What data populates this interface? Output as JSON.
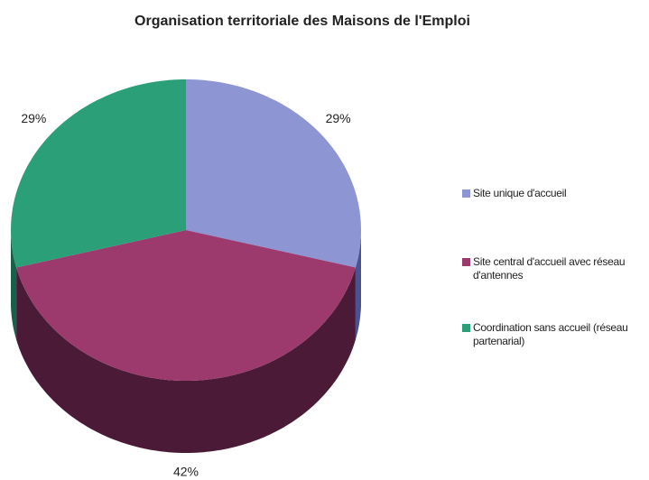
{
  "chart_data": {
    "type": "pie3d",
    "title": "Organisation territoriale des Maisons de l'Emploi",
    "categories": [
      "Site unique d'accueil",
      "Site central d'accueil avec réseau d'antennes",
      "Coordination sans accueil (réseau partenarial)"
    ],
    "values": [
      29,
      42,
      29
    ],
    "value_labels": [
      "29%",
      "42%",
      "29%"
    ],
    "colors": [
      "#8d95d3",
      "#9c3a6d",
      "#2ba078"
    ],
    "side_colors": [
      "#4a528f",
      "#4a1a36",
      "#17604a"
    ],
    "legend": "right"
  }
}
